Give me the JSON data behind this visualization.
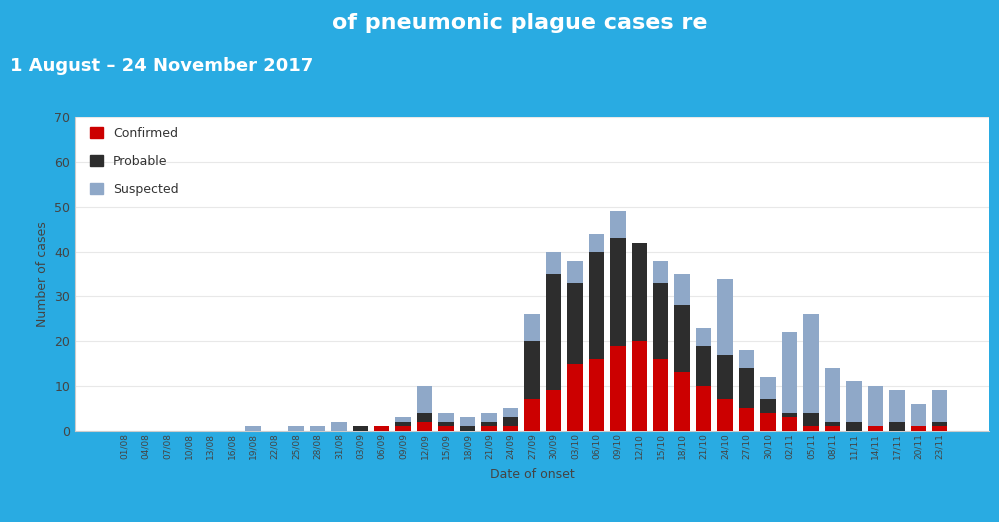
{
  "title1": "of pneumonic plague cases re",
  "title2": "1 August – 24 November 2017",
  "xlabel": "Date of onset",
  "ylabel": "Number of cases",
  "ylim": [
    0,
    70
  ],
  "yticks": [
    0,
    10,
    20,
    30,
    40,
    50,
    60,
    70
  ],
  "confirmed_color": "#cc0000",
  "probable_color": "#2d2d2d",
  "suspected_color": "#8fa8c8",
  "header_bg": "#29abe2",
  "chart_bg": "#ffffff",
  "dates": [
    "01/08",
    "04/08",
    "07/08",
    "10/08",
    "13/08",
    "16/08",
    "19/08",
    "22/08",
    "25/08",
    "28/08",
    "31/08",
    "03/09",
    "06/09",
    "09/09",
    "12/09",
    "15/09",
    "18/09",
    "21/09",
    "24/09",
    "27/09",
    "30/09",
    "03/10",
    "06/10",
    "09/10",
    "12/10",
    "15/10",
    "18/10",
    "21/10",
    "24/10",
    "27/10",
    "30/10",
    "02/11",
    "05/11",
    "08/11",
    "11/11",
    "14/11",
    "17/11",
    "20/11",
    "23/11"
  ],
  "confirmed": [
    0,
    0,
    0,
    0,
    0,
    0,
    0,
    0,
    0,
    0,
    0,
    0,
    1,
    1,
    2,
    1,
    0,
    1,
    1,
    7,
    9,
    15,
    16,
    19,
    20,
    16,
    13,
    10,
    7,
    5,
    4,
    3,
    1,
    1,
    0,
    1,
    0,
    1,
    1
  ],
  "probable": [
    0,
    0,
    0,
    0,
    0,
    0,
    0,
    0,
    0,
    0,
    0,
    1,
    0,
    1,
    2,
    1,
    1,
    1,
    2,
    13,
    26,
    18,
    24,
    24,
    22,
    17,
    15,
    9,
    10,
    9,
    3,
    1,
    3,
    1,
    2,
    0,
    2,
    0,
    1
  ],
  "suspected": [
    0,
    0,
    0,
    0,
    0,
    0,
    1,
    0,
    1,
    1,
    2,
    0,
    0,
    1,
    6,
    2,
    2,
    2,
    2,
    6,
    5,
    5,
    4,
    6,
    0,
    5,
    7,
    4,
    17,
    4,
    5,
    18,
    22,
    12,
    9,
    9,
    7,
    5,
    7
  ]
}
